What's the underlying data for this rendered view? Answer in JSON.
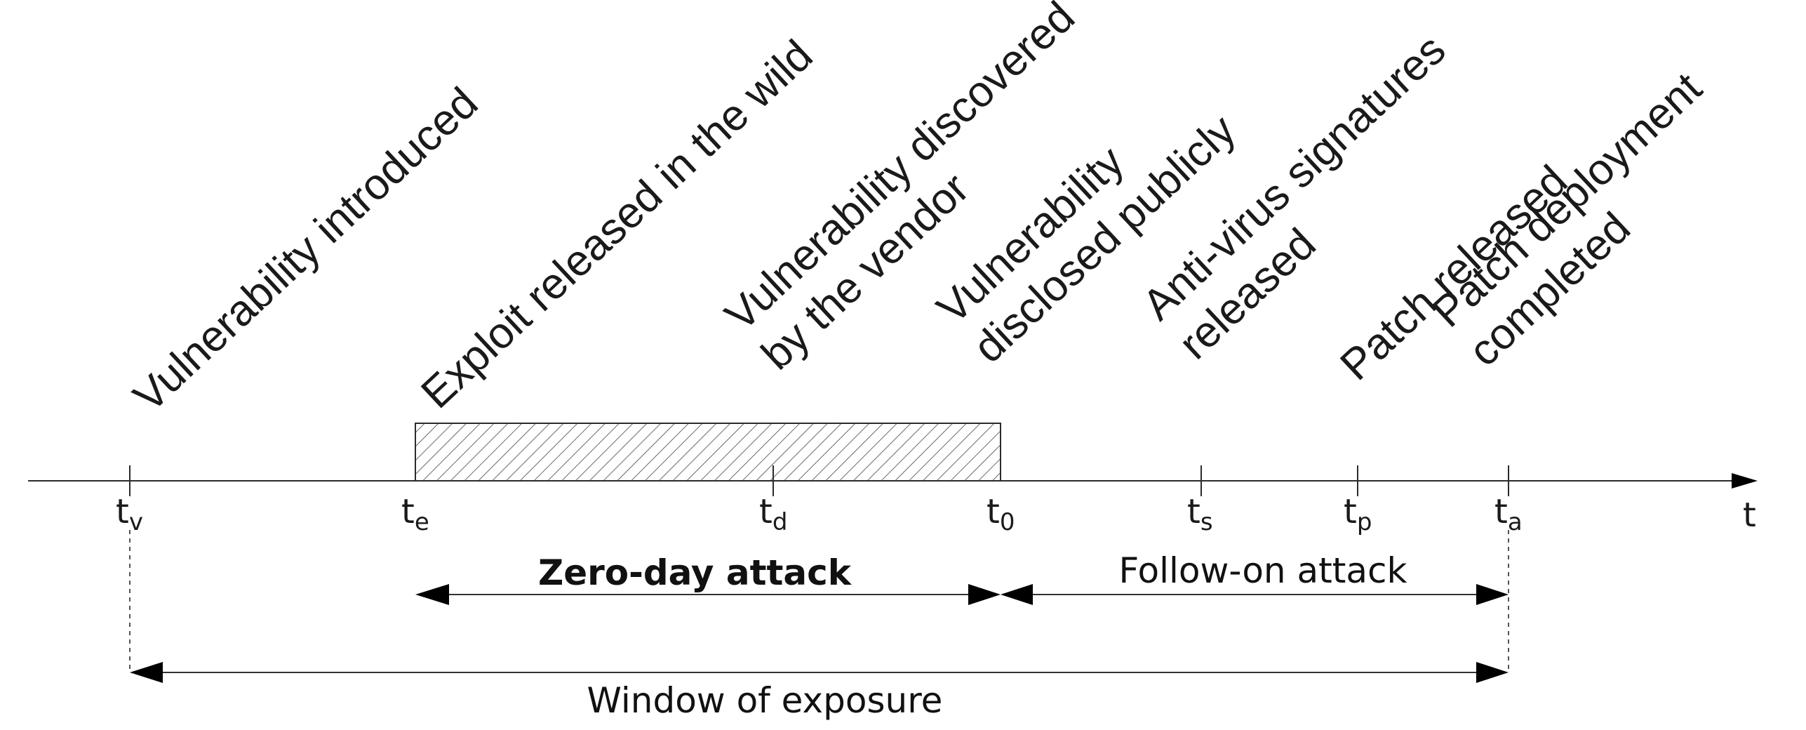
{
  "axis": {
    "label": "t"
  },
  "events": [
    {
      "id": "tv",
      "sub": "v",
      "label_lines": [
        "Vulnerability introduced"
      ]
    },
    {
      "id": "te",
      "sub": "e",
      "label_lines": [
        "Exploit released in the wild"
      ]
    },
    {
      "id": "td",
      "sub": "d",
      "label_lines": [
        "Vulnerability discovered",
        "by the vendor"
      ]
    },
    {
      "id": "t0",
      "sub": "0",
      "label_lines": [
        "Vulnerability",
        "disclosed publicly"
      ]
    },
    {
      "id": "ts",
      "sub": "s",
      "label_lines": [
        "Anti-virus signatures",
        "released"
      ]
    },
    {
      "id": "tp",
      "sub": "p",
      "label_lines": [
        "Patch released"
      ]
    },
    {
      "id": "ta",
      "sub": "a",
      "label_lines": [
        "Patch deployment",
        "completed"
      ]
    }
  ],
  "tick_letter": "t",
  "spans": {
    "zero_day": {
      "label": "Zero-day attack"
    },
    "follow_on": {
      "label": "Follow-on attack"
    },
    "exposure": {
      "label": "Window of exposure"
    }
  }
}
